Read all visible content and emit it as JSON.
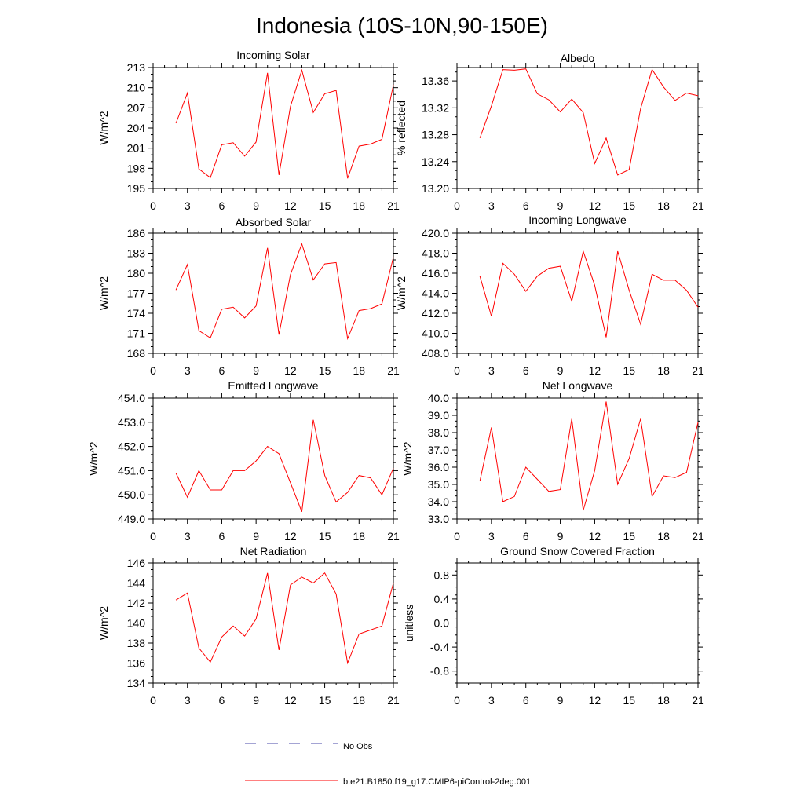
{
  "title": "Indonesia (10S-10N,90-150E)",
  "colors": {
    "model": "#ff0000",
    "obs": "#4a4aa8",
    "axis": "#000000"
  },
  "legend": [
    {
      "label": "No Obs",
      "style": "dashed",
      "color": "#4a4aa8"
    },
    {
      "label": "b.e21.B1850.f19_g17.CMIP6-piControl-2deg.001",
      "style": "solid",
      "color": "#ff0000"
    }
  ],
  "chart_data": [
    {
      "type": "line",
      "title": "Incoming Solar",
      "ylabel": "W/m^2",
      "xlim": [
        0,
        21
      ],
      "xticks": [
        0,
        3,
        6,
        9,
        12,
        15,
        18,
        21
      ],
      "xtick_labels": [
        "0",
        "3",
        "6",
        "9",
        "12",
        "15",
        "18",
        "21"
      ],
      "ylim": [
        195,
        213
      ],
      "yticks": [
        195,
        198,
        201,
        204,
        207,
        210,
        213
      ],
      "ytick_labels": [
        "195",
        "198",
        "201",
        "204",
        "207",
        "210",
        "213"
      ],
      "series": [
        {
          "name": "b.e21.B1850.f19_g17.CMIP6-piControl-2deg.001",
          "x": [
            2,
            3,
            4,
            5,
            6,
            7,
            8,
            9,
            10,
            11,
            12,
            13,
            14,
            15,
            16,
            17,
            18,
            19,
            20,
            21
          ],
          "values": [
            204.7,
            209.2,
            197.9,
            196.6,
            201.5,
            201.8,
            199.8,
            201.9,
            212.2,
            197.0,
            207.2,
            212.6,
            206.3,
            209.1,
            209.6,
            196.5,
            201.3,
            201.6,
            202.3,
            210.4
          ]
        }
      ]
    },
    {
      "type": "line",
      "title": "Albedo",
      "ylabel": "% reflected",
      "xlim": [
        0,
        21
      ],
      "xticks": [
        0,
        3,
        6,
        9,
        12,
        15,
        18,
        21
      ],
      "xtick_labels": [
        "0",
        "3",
        "6",
        "9",
        "12",
        "15",
        "18",
        "21"
      ],
      "ylim": [
        13.2,
        13.38
      ],
      "yticks": [
        13.2,
        13.24,
        13.28,
        13.32,
        13.36
      ],
      "ytick_labels": [
        "13.20",
        "13.24",
        "13.28",
        "13.32",
        "13.36"
      ],
      "series": [
        {
          "name": "b.e21.B1850.f19_g17.CMIP6-piControl-2deg.001",
          "x": [
            2,
            3,
            4,
            5,
            6,
            7,
            8,
            9,
            10,
            11,
            12,
            13,
            14,
            15,
            16,
            17,
            18,
            19,
            20,
            21
          ],
          "values": [
            13.275,
            13.323,
            13.377,
            13.376,
            13.378,
            13.341,
            13.332,
            13.314,
            13.333,
            13.313,
            13.237,
            13.275,
            13.22,
            13.228,
            13.319,
            13.377,
            13.351,
            13.331,
            13.342,
            13.338
          ]
        }
      ]
    },
    {
      "type": "line",
      "title": "Absorbed Solar",
      "ylabel": "W/m^2",
      "xlim": [
        0,
        21
      ],
      "xticks": [
        0,
        3,
        6,
        9,
        12,
        15,
        18,
        21
      ],
      "xtick_labels": [
        "0",
        "3",
        "6",
        "9",
        "12",
        "15",
        "18",
        "21"
      ],
      "ylim": [
        168,
        186
      ],
      "yticks": [
        168,
        171,
        174,
        177,
        180,
        183,
        186
      ],
      "ytick_labels": [
        "168",
        "171",
        "174",
        "177",
        "180",
        "183",
        "186"
      ],
      "series": [
        {
          "name": "b.e21.B1850.f19_g17.CMIP6-piControl-2deg.001",
          "x": [
            2,
            3,
            4,
            5,
            6,
            7,
            8,
            9,
            10,
            11,
            12,
            13,
            14,
            15,
            16,
            17,
            18,
            19,
            20,
            21
          ],
          "values": [
            177.5,
            181.3,
            171.4,
            170.3,
            174.6,
            174.9,
            173.3,
            175.1,
            183.8,
            170.8,
            179.8,
            184.4,
            179.0,
            181.4,
            181.6,
            170.2,
            174.4,
            174.7,
            175.4,
            182.4
          ]
        }
      ]
    },
    {
      "type": "line",
      "title": "Incoming Longwave",
      "ylabel": "W/m^2",
      "xlim": [
        0,
        21
      ],
      "xticks": [
        0,
        3,
        6,
        9,
        12,
        15,
        18,
        21
      ],
      "xtick_labels": [
        "0",
        "3",
        "6",
        "9",
        "12",
        "15",
        "18",
        "21"
      ],
      "ylim": [
        408.0,
        420.0
      ],
      "yticks": [
        408.0,
        410.0,
        412.0,
        414.0,
        416.0,
        418.0,
        420.0
      ],
      "ytick_labels": [
        "408.0",
        "410.0",
        "412.0",
        "414.0",
        "416.0",
        "418.0",
        "420.0"
      ],
      "series": [
        {
          "name": "b.e21.B1850.f19_g17.CMIP6-piControl-2deg.001",
          "x": [
            2,
            3,
            4,
            5,
            6,
            7,
            8,
            9,
            10,
            11,
            12,
            13,
            14,
            15,
            16,
            17,
            18,
            19,
            20,
            21
          ],
          "values": [
            415.7,
            411.7,
            417.0,
            415.9,
            414.2,
            415.7,
            416.5,
            416.7,
            413.2,
            418.2,
            414.8,
            409.6,
            418.2,
            414.3,
            410.9,
            415.9,
            415.3,
            415.3,
            414.3,
            412.6
          ]
        }
      ]
    },
    {
      "type": "line",
      "title": "Emitted Longwave",
      "ylabel": "W/m^2",
      "xlim": [
        0,
        21
      ],
      "xticks": [
        0,
        3,
        6,
        9,
        12,
        15,
        18,
        21
      ],
      "xtick_labels": [
        "0",
        "3",
        "6",
        "9",
        "12",
        "15",
        "18",
        "21"
      ],
      "ylim": [
        449.0,
        454.0
      ],
      "yticks": [
        449.0,
        450.0,
        451.0,
        452.0,
        453.0,
        454.0
      ],
      "ytick_labels": [
        "449.0",
        "450.0",
        "451.0",
        "452.0",
        "453.0",
        "454.0"
      ],
      "series": [
        {
          "name": "b.e21.B1850.f19_g17.CMIP6-piControl-2deg.001",
          "x": [
            2,
            3,
            4,
            5,
            6,
            7,
            8,
            9,
            10,
            11,
            12,
            13,
            14,
            15,
            16,
            17,
            18,
            19,
            20,
            21
          ],
          "values": [
            450.9,
            449.9,
            451.0,
            450.2,
            450.2,
            451.0,
            451.0,
            451.4,
            452.0,
            451.7,
            450.5,
            449.3,
            453.1,
            450.8,
            449.7,
            450.1,
            450.8,
            450.7,
            450.0,
            451.1
          ]
        }
      ]
    },
    {
      "type": "line",
      "title": "Net Longwave",
      "ylabel": "W/m^2",
      "xlim": [
        0,
        21
      ],
      "xticks": [
        0,
        3,
        6,
        9,
        12,
        15,
        18,
        21
      ],
      "xtick_labels": [
        "0",
        "3",
        "6",
        "9",
        "12",
        "15",
        "18",
        "21"
      ],
      "ylim": [
        33.0,
        40.0
      ],
      "yticks": [
        33.0,
        34.0,
        35.0,
        36.0,
        37.0,
        38.0,
        39.0,
        40.0
      ],
      "ytick_labels": [
        "33.0",
        "34.0",
        "35.0",
        "36.0",
        "37.0",
        "38.0",
        "39.0",
        "40.0"
      ],
      "series": [
        {
          "name": "b.e21.B1850.f19_g17.CMIP6-piControl-2deg.001",
          "x": [
            2,
            3,
            4,
            5,
            6,
            7,
            8,
            9,
            10,
            11,
            12,
            13,
            14,
            15,
            16,
            17,
            18,
            19,
            20,
            21
          ],
          "values": [
            35.2,
            38.3,
            34.0,
            34.3,
            36.0,
            35.3,
            34.6,
            34.7,
            38.8,
            33.5,
            35.8,
            39.8,
            35.0,
            36.5,
            38.8,
            34.3,
            35.5,
            35.4,
            35.7,
            38.6
          ]
        }
      ]
    },
    {
      "type": "line",
      "title": "Net Radiation",
      "ylabel": "W/m^2",
      "xlim": [
        0,
        21
      ],
      "xticks": [
        0,
        3,
        6,
        9,
        12,
        15,
        18,
        21
      ],
      "xtick_labels": [
        "0",
        "3",
        "6",
        "9",
        "12",
        "15",
        "18",
        "21"
      ],
      "ylim": [
        134,
        146
      ],
      "yticks": [
        134,
        136,
        138,
        140,
        142,
        144,
        146
      ],
      "ytick_labels": [
        "134",
        "136",
        "138",
        "140",
        "142",
        "144",
        "146"
      ],
      "series": [
        {
          "name": "b.e21.B1850.f19_g17.CMIP6-piControl-2deg.001",
          "x": [
            2,
            3,
            4,
            5,
            6,
            7,
            8,
            9,
            10,
            11,
            12,
            13,
            14,
            15,
            16,
            17,
            18,
            19,
            20,
            21
          ],
          "values": [
            142.3,
            143.0,
            137.5,
            136.1,
            138.6,
            139.7,
            138.7,
            140.4,
            145.0,
            137.3,
            143.8,
            144.6,
            144.0,
            145.0,
            142.9,
            136.0,
            138.9,
            139.3,
            139.7,
            144.0
          ]
        }
      ]
    },
    {
      "type": "line",
      "title": "Ground Snow Covered Fraction",
      "ylabel": "unitless",
      "xlim": [
        0,
        21
      ],
      "xticks": [
        0,
        3,
        6,
        9,
        12,
        15,
        18,
        21
      ],
      "xtick_labels": [
        "0",
        "3",
        "6",
        "9",
        "12",
        "15",
        "18",
        "21"
      ],
      "ylim": [
        -1.0,
        1.0
      ],
      "yticks": [
        -0.8,
        -0.4,
        0.0,
        0.4,
        0.8
      ],
      "ytick_labels": [
        "-0.8",
        "-0.4",
        "0.0",
        "0.4",
        "0.8"
      ],
      "series": [
        {
          "name": "b.e21.B1850.f19_g17.CMIP6-piControl-2deg.001",
          "x": [
            2,
            3,
            4,
            5,
            6,
            7,
            8,
            9,
            10,
            11,
            12,
            13,
            14,
            15,
            16,
            17,
            18,
            19,
            20,
            21
          ],
          "values": [
            0,
            0,
            0,
            0,
            0,
            0,
            0,
            0,
            0,
            0,
            0,
            0,
            0,
            0,
            0,
            0,
            0,
            0,
            0,
            0
          ]
        }
      ]
    }
  ]
}
